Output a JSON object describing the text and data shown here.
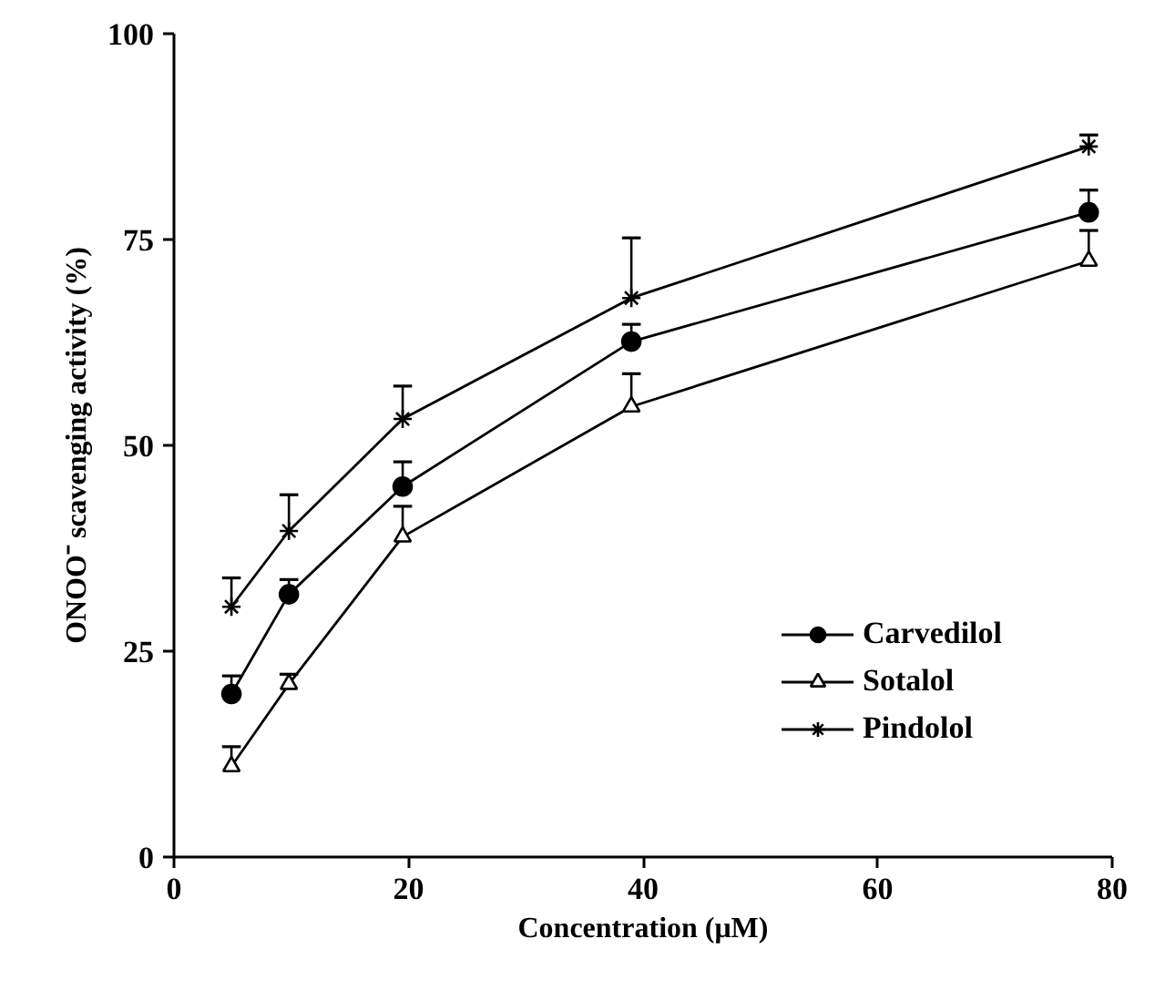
{
  "chart_data": {
    "type": "line",
    "xlabel": "Concentration (μM)",
    "ylabel": "ONOO⁻ scavenging activity (%)",
    "xlim": [
      0,
      80
    ],
    "xticks": [
      0,
      20,
      40,
      60,
      80
    ],
    "ylim": [
      0,
      100
    ],
    "yticks": [
      0,
      25,
      50,
      75,
      100
    ],
    "x": [
      4.9,
      9.8,
      19.5,
      39,
      78
    ],
    "grid": false,
    "legend": "bottom right",
    "line_style": "solid",
    "series": [
      {
        "name": "Carvedilol",
        "color": "#000000",
        "marker": "circle",
        "values": [
          19.8,
          31.9,
          45.0,
          62.6,
          78.3
        ],
        "errors": [
          [
            19.8,
            22.0
          ],
          [
            31.9,
            33.7
          ],
          [
            45.0,
            48.0
          ],
          [
            62.6,
            64.7
          ],
          [
            78.3,
            81.0
          ]
        ]
      },
      {
        "name": "Sotalol",
        "color": "#000000",
        "marker": "triangle",
        "values": [
          11.0,
          21.0,
          38.9,
          54.7,
          72.4
        ],
        "errors": [
          [
            11.0,
            13.4
          ],
          [
            21.0,
            22.2
          ],
          [
            38.9,
            42.6
          ],
          [
            54.7,
            58.7
          ],
          [
            72.4,
            76.1
          ]
        ]
      },
      {
        "name": "Pindolol",
        "color": "#000000",
        "marker": "cross",
        "values": [
          30.4,
          39.6,
          53.2,
          67.9,
          86.3
        ],
        "errors": [
          [
            30.4,
            33.9
          ],
          [
            39.6,
            44.0
          ],
          [
            53.2,
            57.2
          ],
          [
            67.9,
            75.2
          ],
          [
            86.3,
            87.7
          ]
        ]
      }
    ]
  }
}
